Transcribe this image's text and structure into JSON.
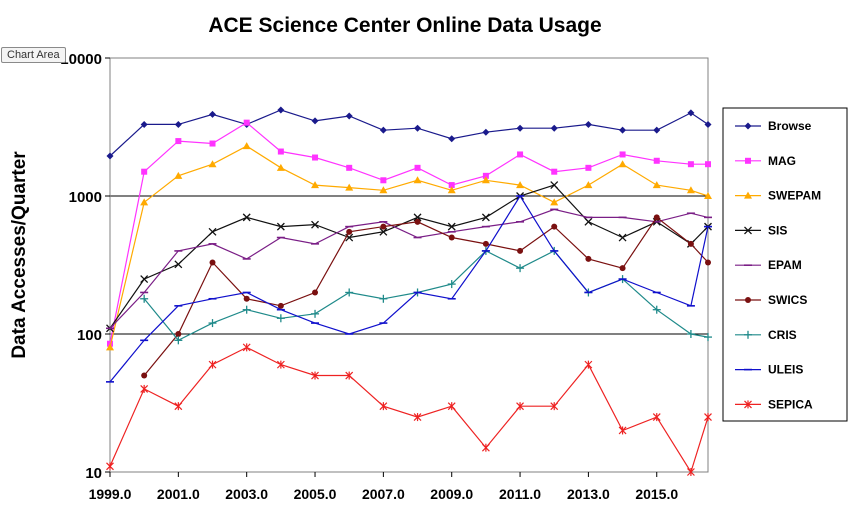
{
  "tooltip": "Chart Area",
  "colors": {
    "Browse": "#1a1a8c",
    "MAG": "#ff33ff",
    "SWEPAM": "#ffaa00",
    "SIS": "#111111",
    "EPAM": "#7a1e86",
    "SWICS": "#7a1010",
    "CRIS": "#1f8a8a",
    "ULEIS": "#1010cc",
    "SEPICA": "#ee2222"
  },
  "chart_data": {
    "type": "line",
    "title": "ACE Science Center Online Data Usage",
    "ylabel": "Data Accesses/Quarter",
    "xlabel": "",
    "yscale": "log",
    "ylim": [
      10,
      10000
    ],
    "xlim": [
      1999.0,
      2016.5
    ],
    "yticks": [
      "10",
      "100",
      "1000",
      "10000"
    ],
    "xticks": [
      "1999.0",
      "2001.0",
      "2003.0",
      "2005.0",
      "2007.0",
      "2009.0",
      "2011.0",
      "2013.0",
      "2015.0"
    ],
    "legend_position": "right",
    "grid": "horizontal",
    "series": [
      {
        "name": "Browse",
        "marker": "diamond",
        "x": [
          1999.0,
          2000.0,
          2001.0,
          2002.0,
          2003.0,
          2004.0,
          2005.0,
          2006.0,
          2007.0,
          2008.0,
          2009.0,
          2010.0,
          2011.0,
          2012.0,
          2013.0,
          2014.0,
          2015.0,
          2016.0,
          2016.5
        ],
        "y": [
          1950,
          3300,
          3300,
          3900,
          3300,
          4200,
          3500,
          3800,
          3000,
          3100,
          2600,
          2900,
          3100,
          3100,
          3300,
          3000,
          3000,
          4000,
          3300
        ]
      },
      {
        "name": "MAG",
        "marker": "square",
        "x": [
          1999.0,
          2000.0,
          2001.0,
          2002.0,
          2003.0,
          2004.0,
          2005.0,
          2006.0,
          2007.0,
          2008.0,
          2009.0,
          2010.0,
          2011.0,
          2012.0,
          2013.0,
          2014.0,
          2015.0,
          2016.0,
          2016.5
        ],
        "y": [
          85,
          1500,
          2500,
          2400,
          3400,
          2100,
          1900,
          1600,
          1300,
          1600,
          1200,
          1400,
          2000,
          1500,
          1600,
          2000,
          1800,
          1700,
          1700
        ]
      },
      {
        "name": "SWEPAM",
        "marker": "triangle",
        "x": [
          1999.0,
          2000.0,
          2001.0,
          2002.0,
          2003.0,
          2004.0,
          2005.0,
          2006.0,
          2007.0,
          2008.0,
          2009.0,
          2010.0,
          2011.0,
          2012.0,
          2013.0,
          2014.0,
          2015.0,
          2016.0,
          2016.5
        ],
        "y": [
          80,
          900,
          1400,
          1700,
          2300,
          1600,
          1200,
          1150,
          1100,
          1300,
          1100,
          1300,
          1200,
          900,
          1200,
          1700,
          1200,
          1100,
          1000
        ]
      },
      {
        "name": "SIS",
        "marker": "x",
        "x": [
          1999.0,
          2000.0,
          2001.0,
          2002.0,
          2003.0,
          2004.0,
          2005.0,
          2006.0,
          2007.0,
          2008.0,
          2009.0,
          2010.0,
          2011.0,
          2012.0,
          2013.0,
          2014.0,
          2015.0,
          2016.0,
          2016.5
        ],
        "y": [
          110,
          250,
          320,
          550,
          700,
          600,
          620,
          500,
          550,
          700,
          600,
          700,
          1000,
          1200,
          650,
          500,
          650,
          450,
          600
        ]
      },
      {
        "name": "EPAM",
        "marker": "dash",
        "x": [
          1999.0,
          2000.0,
          2001.0,
          2002.0,
          2003.0,
          2004.0,
          2005.0,
          2006.0,
          2007.0,
          2008.0,
          2009.0,
          2010.0,
          2011.0,
          2012.0,
          2013.0,
          2014.0,
          2015.0,
          2016.0,
          2016.5
        ],
        "y": [
          110,
          200,
          400,
          450,
          350,
          500,
          450,
          600,
          650,
          500,
          550,
          600,
          650,
          800,
          700,
          700,
          650,
          750,
          700
        ]
      },
      {
        "name": "SWICS",
        "marker": "circle",
        "x": [
          1999.0,
          2000.0,
          2001.0,
          2002.0,
          2003.0,
          2004.0,
          2005.0,
          2006.0,
          2007.0,
          2008.0,
          2009.0,
          2010.0,
          2011.0,
          2012.0,
          2013.0,
          2014.0,
          2015.0,
          2016.0,
          2016.5
        ],
        "y": [
          null,
          50,
          100,
          330,
          180,
          160,
          200,
          550,
          600,
          650,
          500,
          450,
          400,
          600,
          350,
          300,
          700,
          450,
          330
        ]
      },
      {
        "name": "CRIS",
        "marker": "plus",
        "x": [
          1999.0,
          2000.0,
          2001.0,
          2002.0,
          2003.0,
          2004.0,
          2005.0,
          2006.0,
          2007.0,
          2008.0,
          2009.0,
          2010.0,
          2011.0,
          2012.0,
          2013.0,
          2014.0,
          2015.0,
          2016.0,
          2016.5
        ],
        "y": [
          null,
          180,
          90,
          120,
          150,
          130,
          140,
          200,
          180,
          200,
          230,
          400,
          300,
          400,
          200,
          250,
          150,
          100,
          95
        ]
      },
      {
        "name": "ULEIS",
        "marker": "dash",
        "x": [
          1999.0,
          2000.0,
          2001.0,
          2002.0,
          2003.0,
          2004.0,
          2005.0,
          2006.0,
          2007.0,
          2008.0,
          2009.0,
          2010.0,
          2011.0,
          2012.0,
          2013.0,
          2014.0,
          2015.0,
          2016.0,
          2016.5
        ],
        "y": [
          45,
          90,
          160,
          180,
          200,
          150,
          120,
          100,
          120,
          200,
          180,
          400,
          1000,
          400,
          200,
          250,
          200,
          160,
          600
        ]
      },
      {
        "name": "SEPICA",
        "marker": "star",
        "x": [
          1999.0,
          2000.0,
          2001.0,
          2002.0,
          2003.0,
          2004.0,
          2005.0,
          2006.0,
          2007.0,
          2008.0,
          2009.0,
          2010.0,
          2011.0,
          2012.0,
          2013.0,
          2014.0,
          2015.0,
          2016.0,
          2016.5
        ],
        "y": [
          11,
          40,
          30,
          60,
          80,
          60,
          50,
          50,
          30,
          25,
          30,
          15,
          30,
          30,
          60,
          20,
          25,
          10,
          25
        ]
      }
    ]
  }
}
